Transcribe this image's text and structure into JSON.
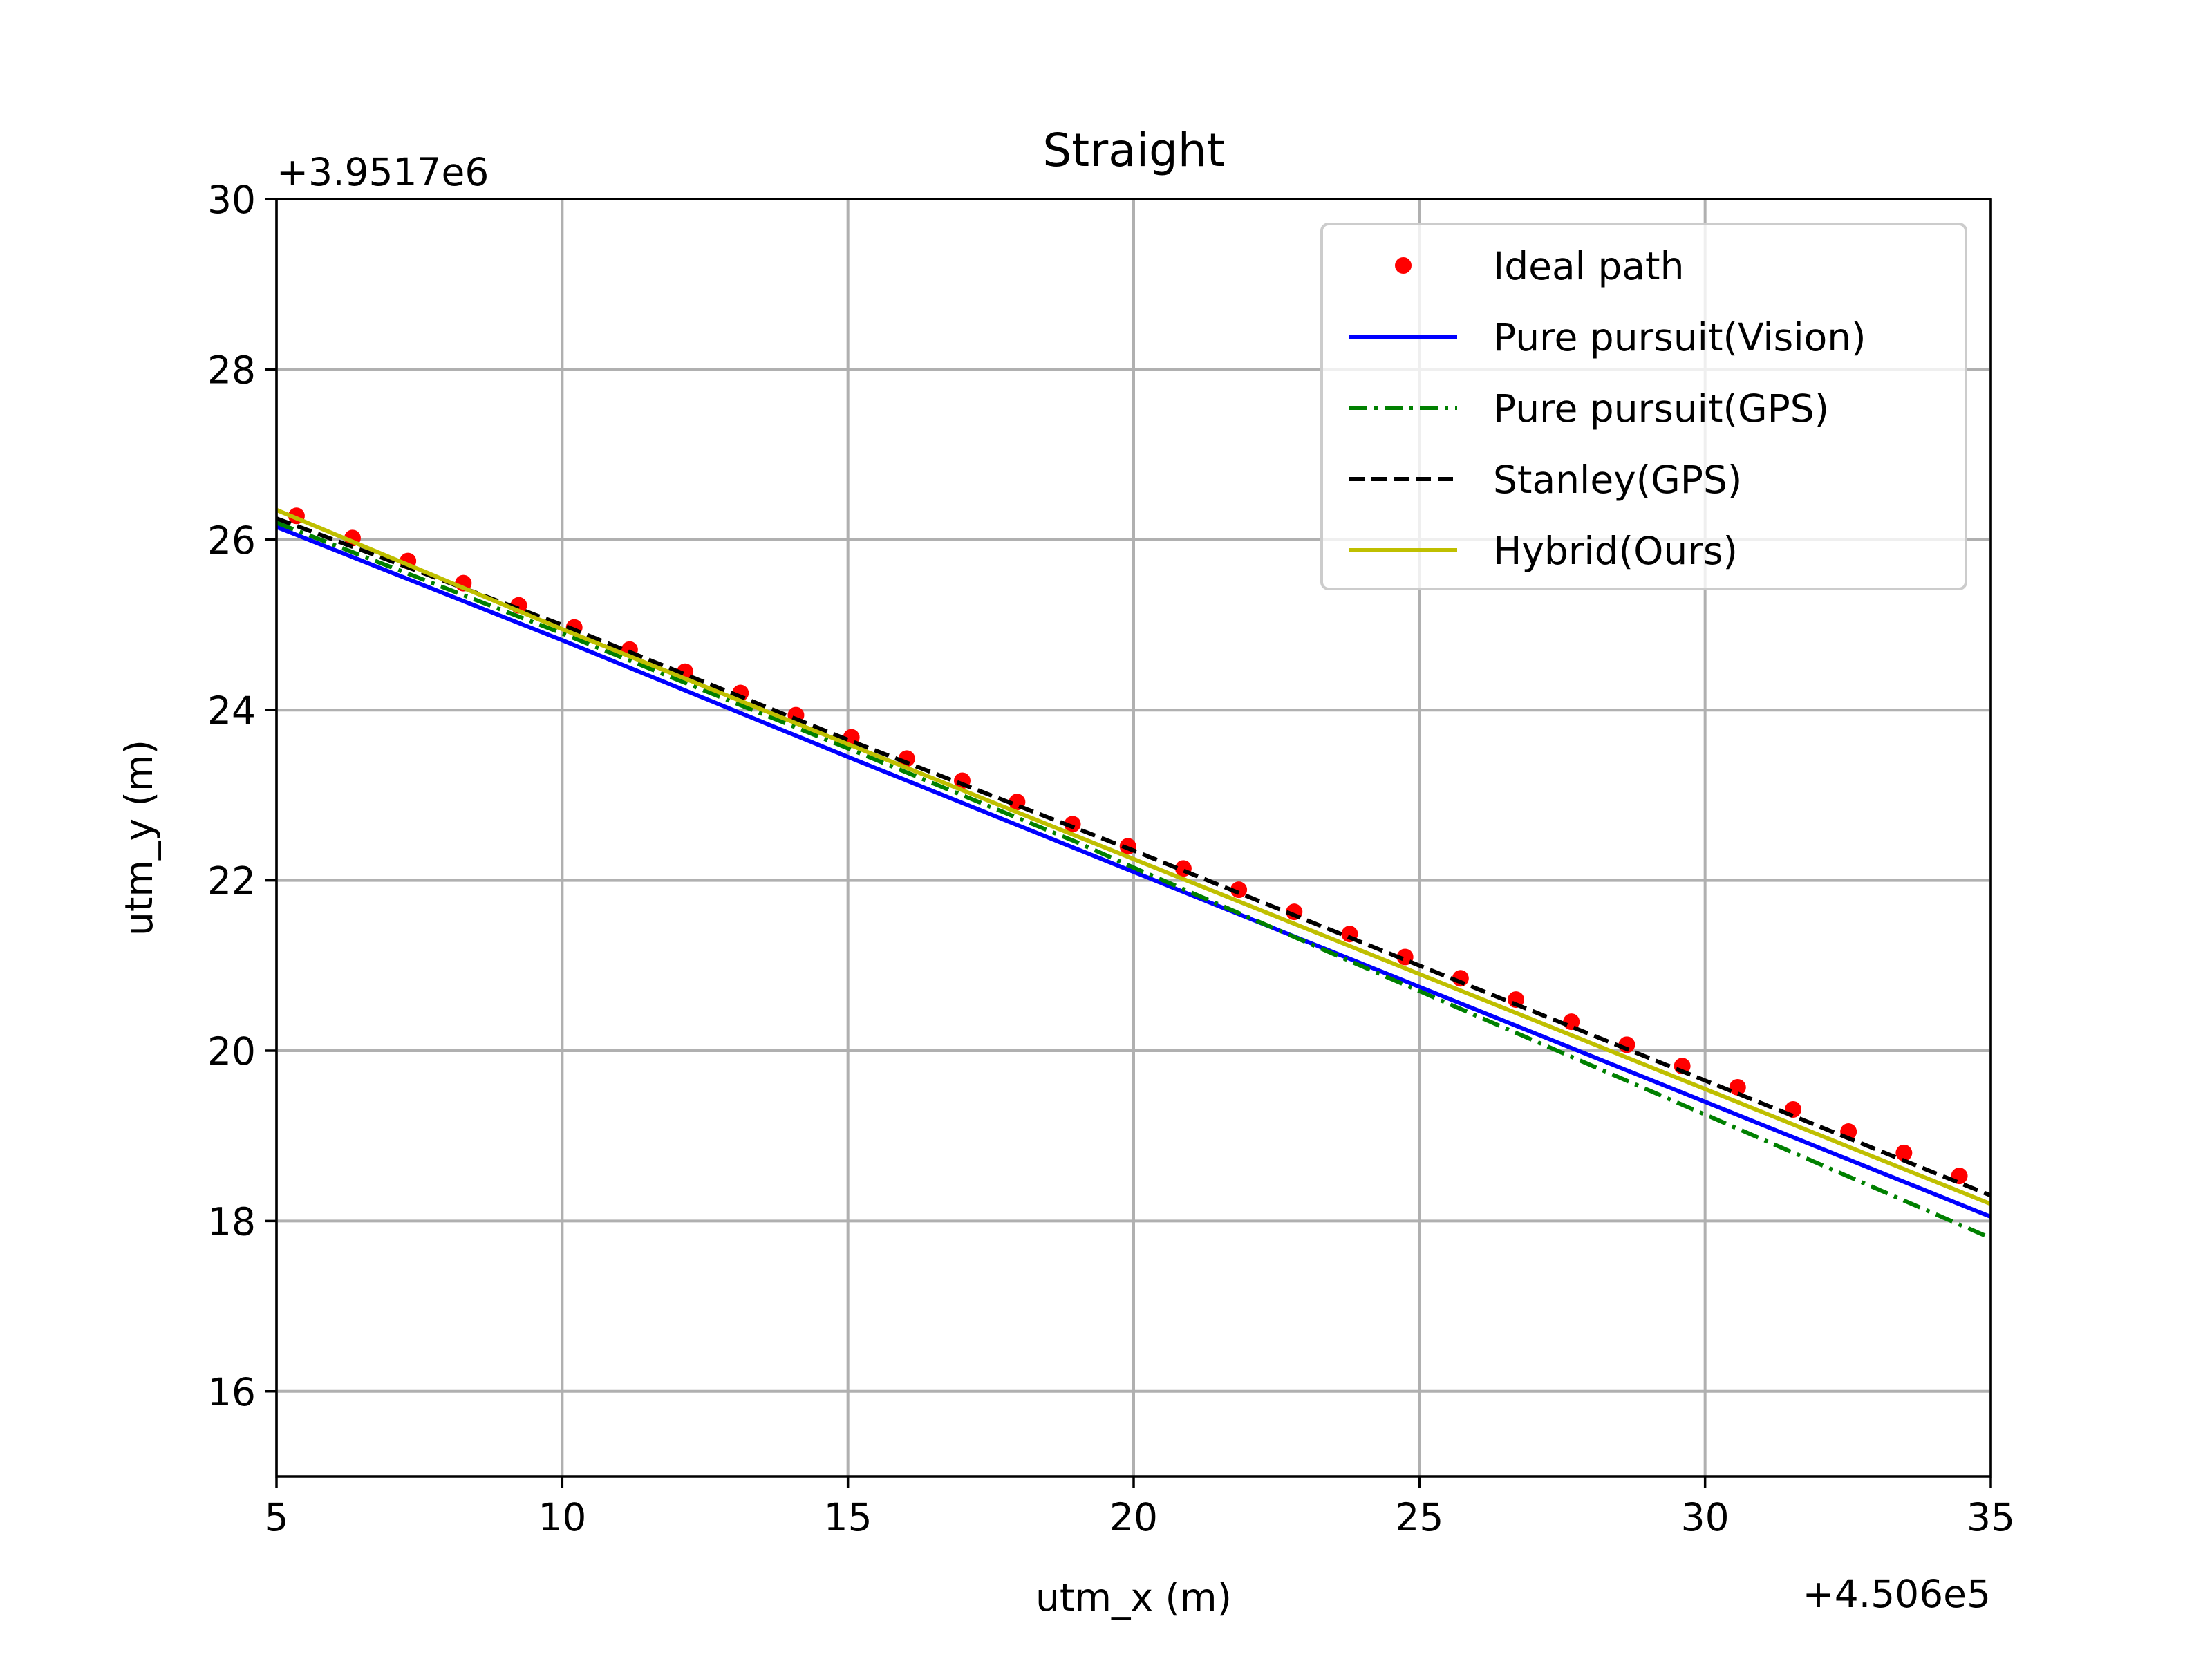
{
  "chart_data": {
    "type": "line",
    "title": "Straight",
    "xlabel": "utm_x (m)",
    "ylabel": "utm_y (m)",
    "x_offset_label": "+4.506e5",
    "y_offset_label": "+3.9517e6",
    "xlim": [
      5,
      35
    ],
    "ylim": [
      15,
      30
    ],
    "xticks": [
      5,
      10,
      15,
      20,
      25,
      30,
      35
    ],
    "yticks": [
      16,
      18,
      20,
      22,
      24,
      26,
      28,
      30
    ],
    "grid": true,
    "legend_position": "top-right",
    "series": [
      {
        "name": "Ideal path",
        "style": "markers",
        "color": "#ff0000",
        "x": [
          5.35,
          6.33,
          7.3,
          8.27,
          9.24,
          10.21,
          11.18,
          12.15,
          13.12,
          14.09,
          15.06,
          16.03,
          17.0,
          17.96,
          18.93,
          19.9,
          20.87,
          21.84,
          22.81,
          23.78,
          24.75,
          25.72,
          26.69,
          27.66,
          28.63,
          29.6,
          30.57,
          31.54,
          32.51,
          33.48,
          34.45
        ],
        "y": [
          26.28,
          26.02,
          25.75,
          25.49,
          25.23,
          24.97,
          24.71,
          24.45,
          24.2,
          23.94,
          23.68,
          23.43,
          23.17,
          22.92,
          22.66,
          22.4,
          22.14,
          21.89,
          21.63,
          21.37,
          21.1,
          20.85,
          20.6,
          20.34,
          20.07,
          19.82,
          19.57,
          19.31,
          19.05,
          18.8,
          18.53
        ]
      },
      {
        "name": "Pure pursuit(Vision)",
        "style": "solid",
        "color": "#0000ff",
        "x": [
          5,
          10,
          15,
          20,
          25,
          30,
          35
        ],
        "y": [
          26.15,
          24.82,
          23.45,
          22.1,
          20.75,
          19.4,
          18.05
        ]
      },
      {
        "name": "Pure pursuit(GPS)",
        "style": "dashdot",
        "color": "#008000",
        "x": [
          5,
          10,
          15,
          19,
          20,
          25,
          30,
          35
        ],
        "y": [
          26.2,
          24.9,
          23.55,
          22.45,
          22.15,
          20.7,
          19.25,
          17.8
        ]
      },
      {
        "name": "Stanley(GPS)",
        "style": "dashed",
        "color": "#000000",
        "x": [
          5,
          10,
          15,
          20,
          25,
          30,
          35
        ],
        "y": [
          26.25,
          25.0,
          23.65,
          22.35,
          21.0,
          19.65,
          18.3
        ]
      },
      {
        "name": "Hybrid(Ours)",
        "style": "solid",
        "color": "#bfbf00",
        "x": [
          5,
          10,
          15,
          20,
          25,
          30,
          35
        ],
        "y": [
          26.35,
          24.95,
          23.6,
          22.25,
          20.9,
          19.55,
          18.2
        ]
      }
    ]
  }
}
